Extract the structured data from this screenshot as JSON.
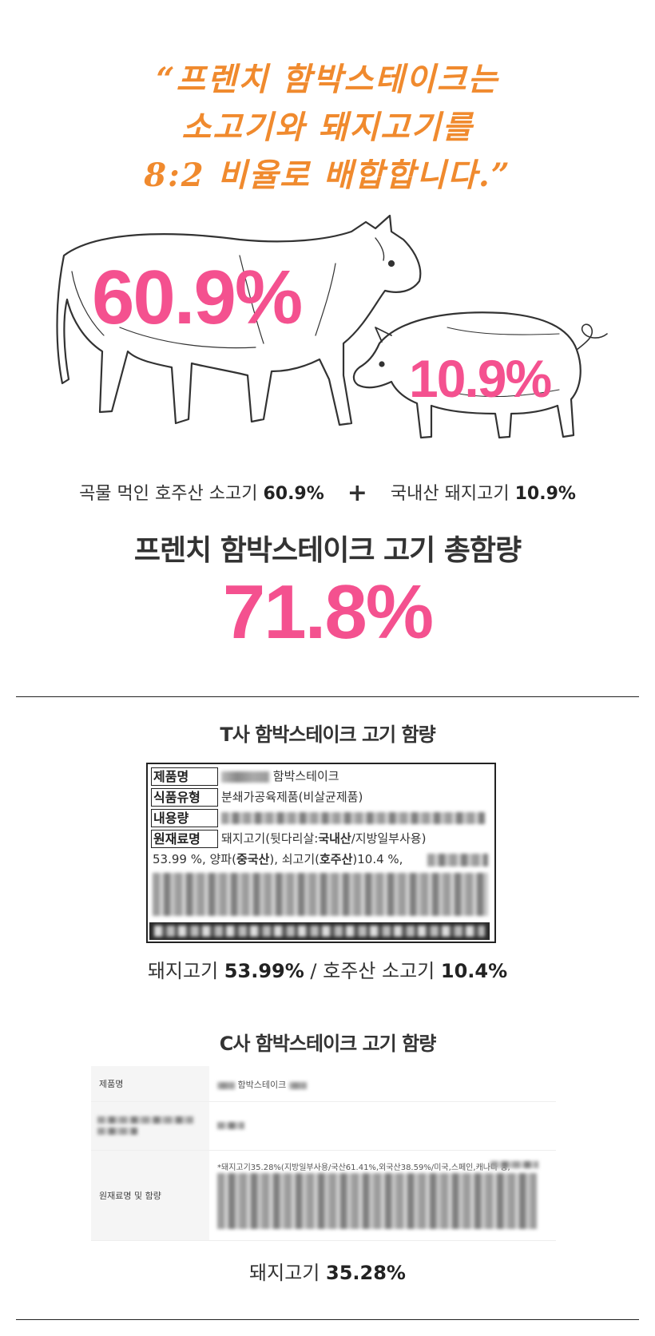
{
  "headline": {
    "line1": "“프렌치 함박스테이크는",
    "line2": "소고기와 돼지고기를",
    "line3": "8:2 비율로 배합합니다.”"
  },
  "illustration": {
    "cow_percent": "60.9%",
    "pig_percent": "10.9%",
    "cow_icon": "cow-sketch-icon",
    "pig_icon": "pig-sketch-icon"
  },
  "composition": {
    "beef_label": "곡물 먹인 호주산 소고기",
    "beef_value": "60.9%",
    "plus": "+",
    "pork_label": "국내산 돼지고기",
    "pork_value": "10.9%"
  },
  "total": {
    "title": "프렌치 함박스테이크 고기 총함량",
    "value": "71.8%"
  },
  "t_company": {
    "title": "T사 함박스테이크 고기 함량",
    "rows": [
      {
        "label": "제품명",
        "value": "함박스테이크"
      },
      {
        "label": "식품유형",
        "value": "분쇄가공육제품(비살균제품)"
      },
      {
        "label": "내용량",
        "value": ""
      },
      {
        "label": "원재료명",
        "value_a": "돼지고기(뒷다리살:",
        "value_b": "국내산",
        "value_c": "/지방일부사용)"
      }
    ],
    "ingredient_line": {
      "a": "53.99 %, 양파(",
      "b": "중국산",
      "c": "), 쇠고기(",
      "d": "호주산",
      "e": ")10.4 %,"
    },
    "summary": {
      "pork_label": "돼지고기",
      "pork_value": "53.99%",
      "separator": "/",
      "beef_label": "호주산 소고기",
      "beef_value": "10.4%"
    }
  },
  "c_company": {
    "title": "C사 함박스테이크 고기 함량",
    "rows": [
      {
        "label": "제품명",
        "value": "함박스테이크"
      },
      {
        "label": "",
        "value": ""
      },
      {
        "label": "원재료명 및 함량",
        "value": "*돼지고기35.28%(지방일부사용/국산61.41%,외국산38.59%/미국,스페인,캐나다 등,"
      }
    ],
    "summary": {
      "pork_label": "돼지고기",
      "pork_value": "35.28%"
    }
  },
  "colors": {
    "headline_orange": "#f08a2e",
    "accent_pink": "#f4518f",
    "text_dark": "#222222"
  }
}
